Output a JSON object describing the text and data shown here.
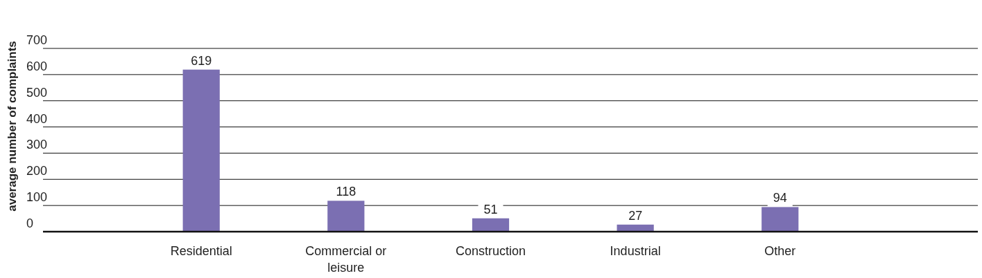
{
  "chart_data": {
    "type": "bar",
    "ylabel": "average number of complaints",
    "categories": [
      "Residential",
      "Commercial or leisure",
      "Construction",
      "Industrial",
      "Other"
    ],
    "values": [
      619,
      118,
      51,
      27,
      94
    ],
    "color": "#7b6fb2",
    "ylim": [
      0,
      700
    ],
    "yticks": [
      0,
      100,
      200,
      300,
      400,
      500,
      600,
      700
    ],
    "grid": "y",
    "data_labels": true
  }
}
